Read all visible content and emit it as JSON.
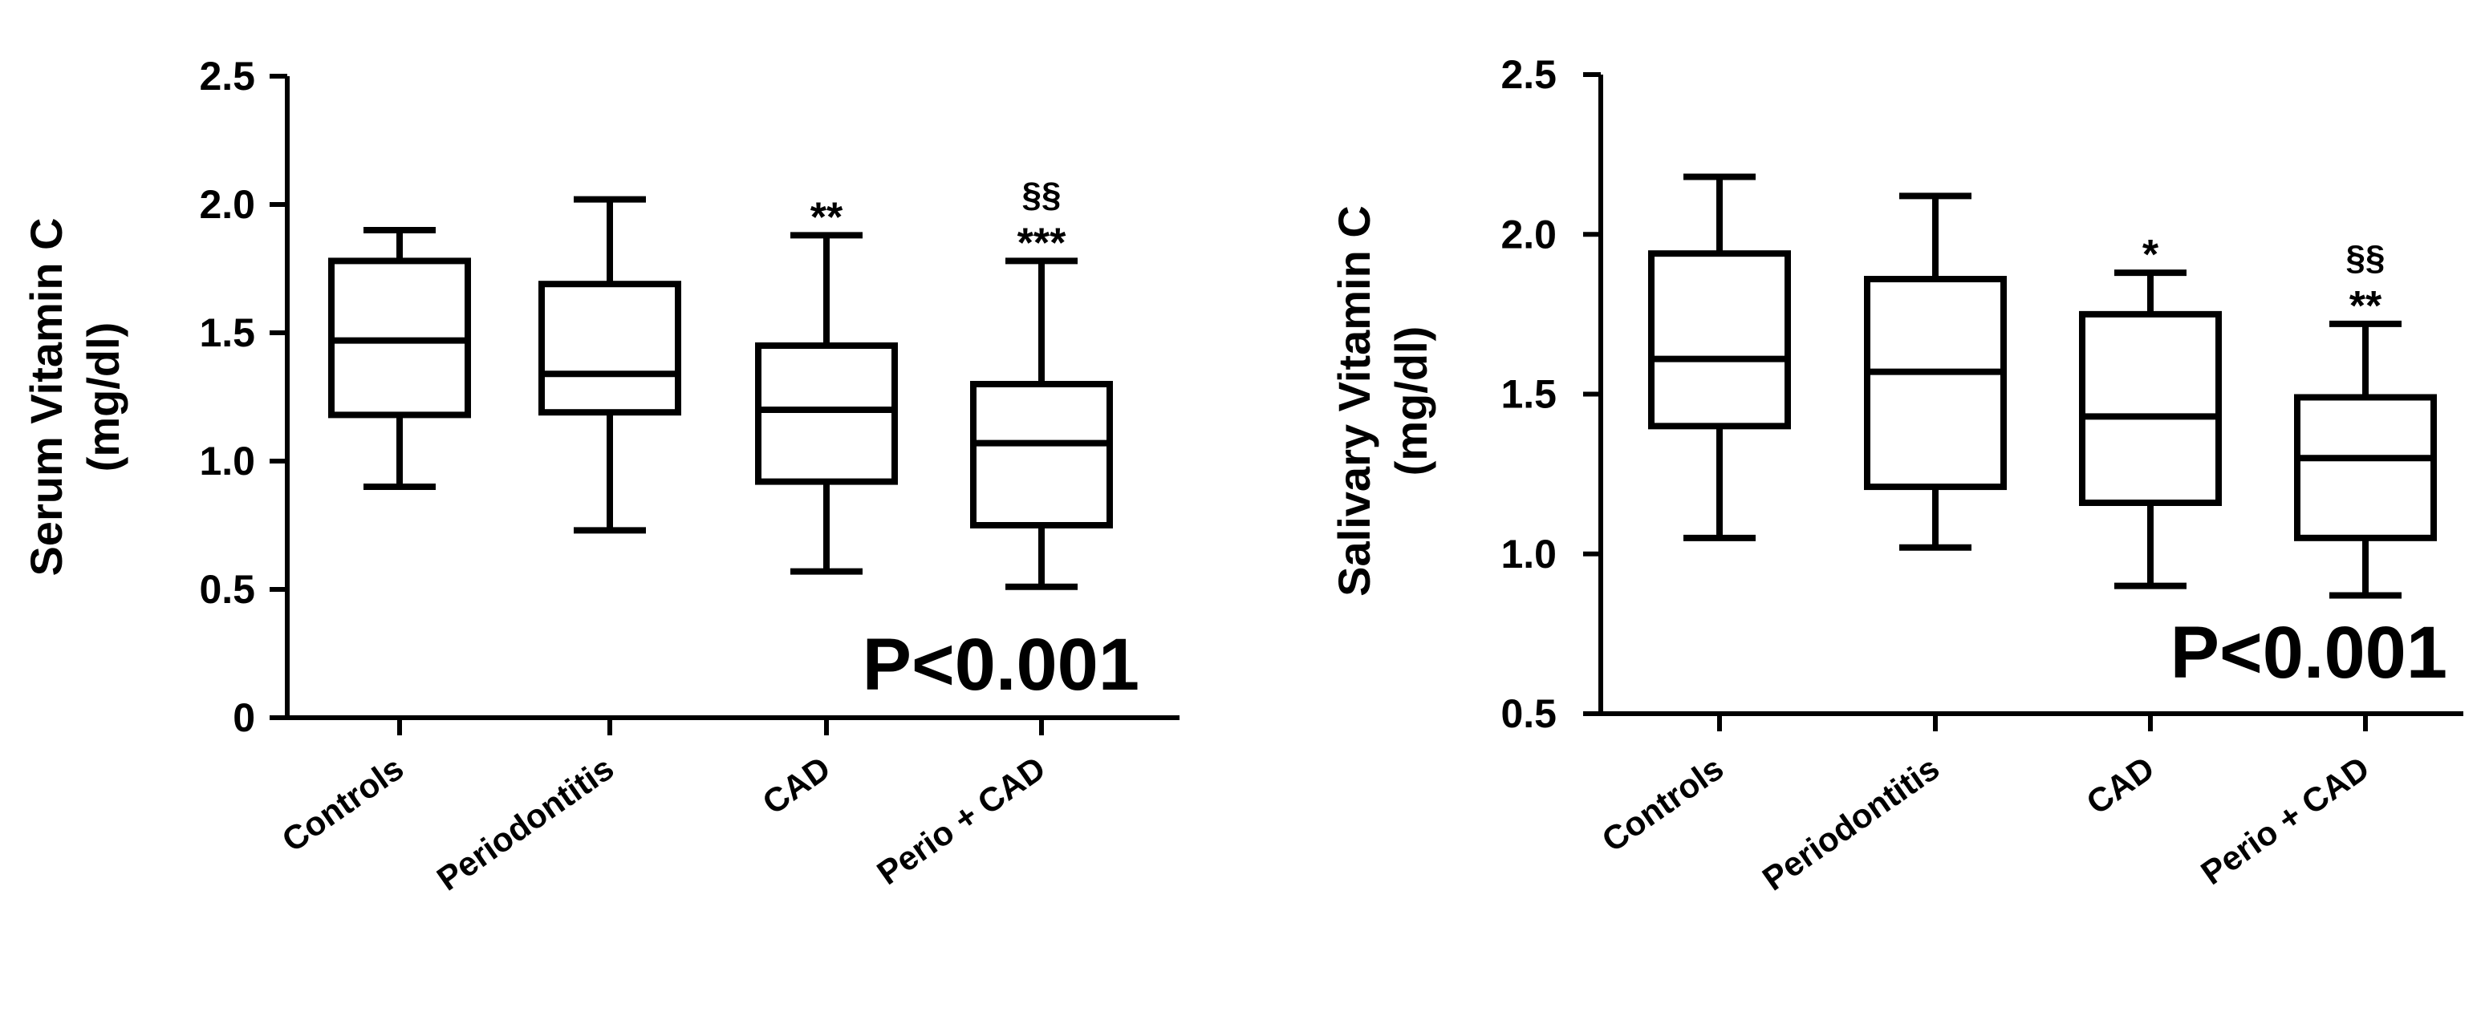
{
  "chart_data": [
    {
      "type": "box",
      "ylabel_line1": "Serum Vitamin C",
      "ylabel_line2": "(mg/dl)",
      "ylim": [
        0,
        2.5
      ],
      "yticks": [
        {
          "value": 0,
          "label": "0"
        },
        {
          "value": 0.5,
          "label": "0.5"
        },
        {
          "value": 1.0,
          "label": "1.0"
        },
        {
          "value": 1.5,
          "label": "1.5"
        },
        {
          "value": 2.0,
          "label": "2.0"
        },
        {
          "value": 2.5,
          "label": "2.5"
        }
      ],
      "categories": [
        "Controls",
        "Periodontitis",
        "CAD",
        "Perio + CAD"
      ],
      "boxes": [
        {
          "min": 0.9,
          "q1": 1.18,
          "median": 1.47,
          "q3": 1.78,
          "max": 1.9,
          "sig": "",
          "sig2": ""
        },
        {
          "min": 0.73,
          "q1": 1.19,
          "median": 1.34,
          "q3": 1.69,
          "max": 2.02,
          "sig": "",
          "sig2": ""
        },
        {
          "min": 0.57,
          "q1": 0.92,
          "median": 1.2,
          "q3": 1.45,
          "max": 1.88,
          "sig": "**",
          "sig2": ""
        },
        {
          "min": 0.51,
          "q1": 0.75,
          "median": 1.07,
          "q3": 1.3,
          "max": 1.78,
          "sig": "***",
          "sig2": "§§"
        }
      ],
      "annotation": "P<0.001"
    },
    {
      "type": "box",
      "ylabel_line1": "Salivary Vitamin C",
      "ylabel_line2": "(mg/dl)",
      "ylim": [
        0.5,
        2.5
      ],
      "yticks": [
        {
          "value": 0.5,
          "label": "0.5"
        },
        {
          "value": 1.0,
          "label": "1.0"
        },
        {
          "value": 1.5,
          "label": "1.5"
        },
        {
          "value": 2.0,
          "label": "2.0"
        },
        {
          "value": 2.5,
          "label": "2.5"
        }
      ],
      "categories": [
        "Controls",
        "Periodontitis",
        "CAD",
        "Perio + CAD"
      ],
      "boxes": [
        {
          "min": 1.05,
          "q1": 1.4,
          "median": 1.61,
          "q3": 1.94,
          "max": 2.18,
          "sig": "",
          "sig2": ""
        },
        {
          "min": 1.02,
          "q1": 1.21,
          "median": 1.57,
          "q3": 1.86,
          "max": 2.12,
          "sig": "",
          "sig2": ""
        },
        {
          "min": 0.9,
          "q1": 1.16,
          "median": 1.43,
          "q3": 1.75,
          "max": 1.88,
          "sig": "*",
          "sig2": ""
        },
        {
          "min": 0.87,
          "q1": 1.05,
          "median": 1.3,
          "q3": 1.49,
          "max": 1.72,
          "sig": "**",
          "sig2": "§§"
        }
      ],
      "annotation": "P<0.001"
    }
  ]
}
